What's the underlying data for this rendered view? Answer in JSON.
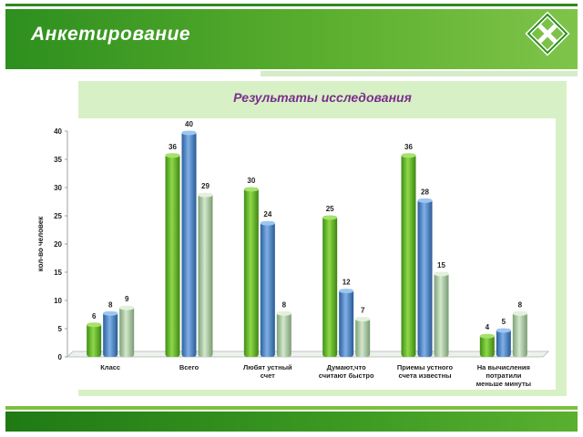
{
  "slide": {
    "title": "Анкетирование",
    "panel_title": "Результаты  исследования"
  },
  "colors": {
    "series1": "#6cbf2e",
    "series2": "#4a86c8",
    "series3": "#a9c99e",
    "header": "#2d8f1e",
    "panel": "#d8f0c6",
    "title_accent": "#7a2f8c"
  },
  "chart_data": {
    "type": "bar",
    "title": "",
    "ylabel": "кол-во человек",
    "xlabel": "",
    "ylim": [
      0,
      40
    ],
    "yticks": [
      0,
      5,
      10,
      15,
      20,
      25,
      30,
      35,
      40
    ],
    "grid": false,
    "legend": "none",
    "categories": [
      "Класс",
      "Всего",
      "Любят устный счет",
      "Думают,что считают быстро",
      "Приемы устного счета известны",
      "На вычисления потратили меньше минуты"
    ],
    "category_lines": [
      [
        "Класс"
      ],
      [
        "Всего"
      ],
      [
        "Любят устный",
        "счет"
      ],
      [
        "Думают,что",
        "считают быстро"
      ],
      [
        "Приемы устного",
        "счета известны"
      ],
      [
        "На вычисления",
        "потратили",
        "меньше минуты"
      ]
    ],
    "series": [
      {
        "values": [
          6,
          36,
          30,
          25,
          36,
          4
        ]
      },
      {
        "values": [
          8,
          40,
          24,
          12,
          28,
          5
        ]
      },
      {
        "values": [
          9,
          29,
          8,
          7,
          15,
          8
        ]
      }
    ]
  }
}
